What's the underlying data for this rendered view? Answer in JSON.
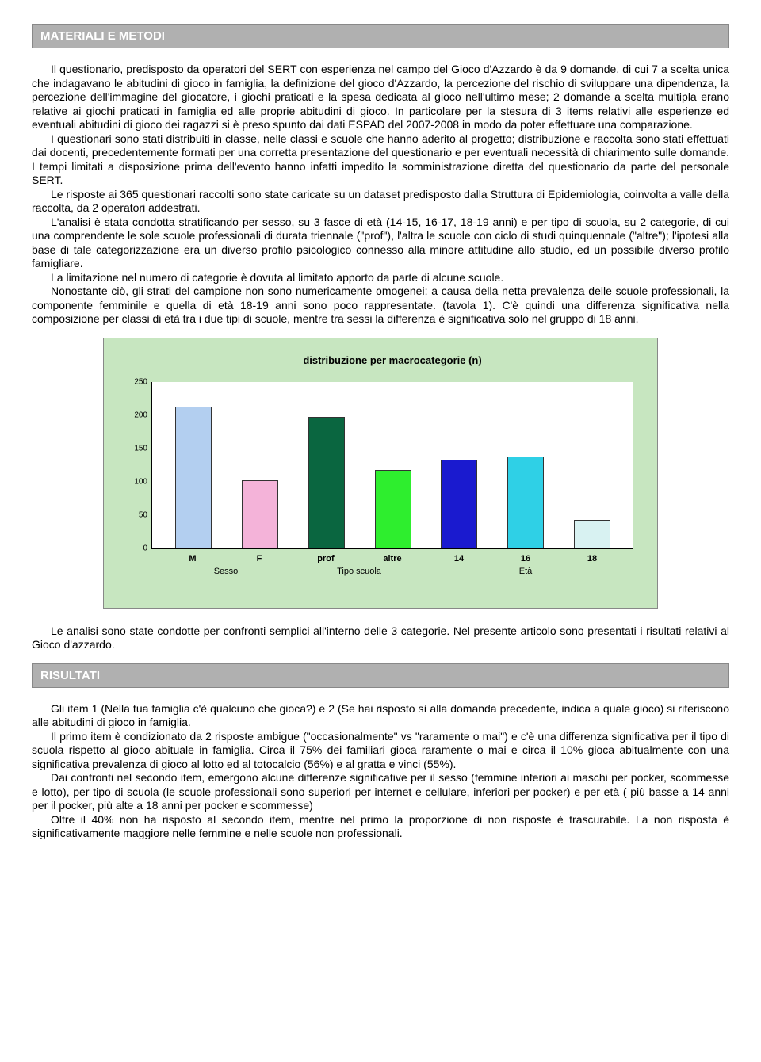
{
  "sections": {
    "materials_header": "MATERIALI E METODI",
    "results_header": "RISULTATI"
  },
  "para": {
    "p1": "Il questionario, predisposto da operatori del SERT con esperienza nel campo del Gioco d'Azzardo è da 9 domande, di cui 7 a scelta unica che indagavano le abitudini di gioco in famiglia, la definizione del gioco d'Azzardo, la percezione del rischio di sviluppare una dipendenza, la percezione dell'immagine del giocatore, i giochi praticati e la spesa dedicata al gioco nell'ultimo mese; 2 domande a scelta multipla erano relative ai giochi praticati in famiglia ed alle proprie abitudini di gioco. In particolare per la stesura di 3 items relativi alle esperienze ed eventuali abitudini di gioco dei ragazzi si è preso spunto dai dati ESPAD del 2007-2008 in modo da poter effettuare una comparazione.",
    "p2": "I questionari sono stati distribuiti in classe, nelle classi e scuole che hanno aderito al progetto; distribuzione e raccolta sono stati effettuati dai docenti, precedentemente formati per una corretta presentazione del questionario e per eventuali necessità di chiarimento sulle domande. I tempi limitati a disposizione prima dell'evento hanno infatti impedito la somministrazione diretta del questionario da parte del personale SERT.",
    "p3": "Le risposte ai 365 questionari raccolti sono state caricate su un dataset predisposto dalla Struttura di Epidemiologia, coinvolta a valle della raccolta, da 2 operatori addestrati.",
    "p4": "L'analisi è stata condotta stratificando per sesso, su 3 fasce di età (14-15, 16-17, 18-19 anni) e per tipo di scuola, su 2 categorie, di cui una comprendente le sole scuole professionali di durata triennale (\"prof\"), l'altra le scuole con ciclo di studi quinquennale (\"altre\"); l'ipotesi alla base di tale categorizzazione era un diverso profilo psicologico connesso alla minore attitudine allo studio, ed un possibile diverso profilo famigliare.",
    "p5": "La limitazione nel numero di categorie è dovuta al limitato apporto da parte di alcune scuole.",
    "p6": "Nonostante ciò, gli strati del campione non sono numericamente omogenei: a causa della netta prevalenza delle scuole professionali, la componente femminile e quella di età 18-19 anni sono poco rappresentate. (tavola 1). C'è quindi una differenza significativa nella composizione per classi di età tra i due tipi di scuole, mentre tra sessi la differenza è significativa solo nel gruppo di 18 anni.",
    "p7": "Le analisi sono state condotte per confronti semplici all'interno delle 3 categorie. Nel presente articolo sono presentati i risultati relativi al Gioco d'azzardo.",
    "p8": "Gli item 1 (Nella tua famiglia c'è qualcuno che gioca?) e 2 (Se hai risposto sì alla domanda precedente, indica a quale gioco) si riferiscono alle abitudini di gioco in famiglia.",
    "p9": "Il primo item è condizionato da 2 risposte ambigue (\"occasionalmente\" vs \"raramente o mai\") e c'è una differenza significativa per il tipo di scuola rispetto al gioco abituale in famiglia. Circa il 75% dei familiari gioca raramente o mai e circa il 10% gioca abitualmente con una significativa prevalenza di gioco al lotto ed al totocalcio (56%) e al gratta e vinci (55%).",
    "p10": "Dai confronti nel secondo item, emergono alcune differenze significative per il sesso (femmine inferiori ai maschi per pocker, scommesse e lotto), per tipo di scuola (le scuole professionali sono superiori per internet e cellulare, inferiori per pocker) e per età ( più basse a 14 anni per il pocker, più alte a 18 anni per pocker e scommesse)",
    "p11": "Oltre il 40% non ha risposto al secondo item, mentre nel primo la proporzione di non risposte è trascurabile. La non risposta è significativamente maggiore nelle femmine e nelle scuole non professionali."
  },
  "chart": {
    "type": "bar",
    "title": "distribuzione per macrocategorie (n)",
    "background_color": "#c7e6c0",
    "plot_background": "#ffffff",
    "ylim": [
      0,
      250
    ],
    "ytick_step": 50,
    "yticks": [
      "0",
      "50",
      "100",
      "150",
      "200",
      "250"
    ],
    "categories": [
      "M",
      "F",
      "prof",
      "altre",
      "14",
      "16",
      "18"
    ],
    "values": [
      210,
      100,
      195,
      115,
      130,
      135,
      40
    ],
    "bar_colors": [
      "#b3cff0",
      "#f4b3d9",
      "#0a6640",
      "#2eee2e",
      "#1a1acf",
      "#2fd0e6",
      "#d8f2f2"
    ],
    "bar_border": "#333333",
    "groups": [
      {
        "label": "Sesso",
        "span": 2
      },
      {
        "label": "Tipo scuola",
        "span": 2
      },
      {
        "label": "Età",
        "span": 3
      }
    ]
  }
}
